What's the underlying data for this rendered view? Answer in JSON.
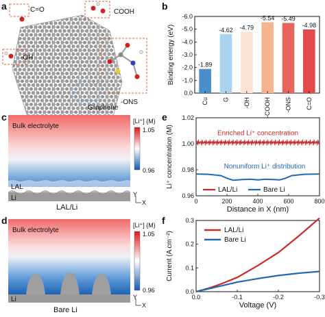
{
  "panels": {
    "a": {
      "label": "a",
      "groups": [
        "C=O",
        "COOH",
        "-OH",
        "-ONS"
      ],
      "substrate": "Graphene"
    },
    "b": {
      "label": "b"
    },
    "c": {
      "label": "c",
      "bulk": "Bulk electrolyte",
      "layer": "LAL",
      "metal": "Li",
      "caption": "LAL/Li",
      "scale_title": "[Li⁺] (M)",
      "scale_max": "1.05",
      "scale_min": "0.96",
      "axis_y": "Y",
      "axis_x": "X"
    },
    "d": {
      "label": "d",
      "bulk": "Bulk electrolyte",
      "metal": "Li",
      "caption": "Bare Li",
      "scale_title": "[Li⁺] (M)",
      "scale_max": "1.05",
      "scale_min": "0.96",
      "axis_y": "Y",
      "axis_x": "X"
    },
    "e": {
      "label": "e"
    },
    "f": {
      "label": "f"
    }
  },
  "chart_data": [
    {
      "id": "b",
      "type": "bar",
      "ylabel": "Binding energy (eV)",
      "ylim": [
        0,
        -6.0
      ],
      "yticks": [
        "0.0",
        "-1.0",
        "-2.0",
        "-3.0",
        "-4.0",
        "-5.0",
        "-6.0"
      ],
      "categories": [
        "Cu",
        "G",
        "-OH",
        "-COOH",
        "-ONS",
        "C=O"
      ],
      "values": [
        -1.89,
        -4.62,
        -4.79,
        -5.54,
        -5.49,
        -4.98
      ],
      "value_labels": [
        "-1.89",
        "-4.62",
        "-4.79",
        "-5.54",
        "-5.49",
        "-4.98"
      ],
      "colors": [
        "#4a8fc8",
        "#a9d3ef",
        "#fbe3d3",
        "#f5b38e",
        "#e8645a",
        "#e14b4b"
      ]
    },
    {
      "id": "e",
      "type": "line",
      "xlabel": "Distance in X (nm)",
      "ylabel": "Li⁺ concentration (M)",
      "xlim": [
        0,
        800
      ],
      "ylim": [
        0.96,
        1.02
      ],
      "xticks": [
        "0",
        "200",
        "400",
        "600",
        "800"
      ],
      "yticks": [
        "0.96",
        "0.98",
        "1.00",
        "1.02"
      ],
      "annotations": [
        "Enriched Li⁺ concentration",
        "Nonuniform Li⁺ distribution"
      ],
      "legend": "bottom",
      "series": [
        {
          "name": "LAL/Li",
          "color": "#cc2a2a",
          "x": [
            0,
            100,
            200,
            300,
            400,
            500,
            600,
            700,
            800
          ],
          "y": [
            1.001,
            1.001,
            1.001,
            1.001,
            1.001,
            1.001,
            1.001,
            1.001,
            1.001
          ],
          "ripple": 0.0012
        },
        {
          "name": "Bare Li",
          "color": "#1f68b3",
          "x": [
            0,
            80,
            160,
            200,
            240,
            300,
            350,
            400,
            450,
            500,
            540,
            580,
            620,
            700,
            800
          ],
          "y": [
            0.9768,
            0.9765,
            0.9755,
            0.9735,
            0.972,
            0.9725,
            0.9728,
            0.9722,
            0.9728,
            0.9725,
            0.9722,
            0.9735,
            0.9755,
            0.9765,
            0.9768
          ]
        }
      ]
    },
    {
      "id": "f",
      "type": "line",
      "xlabel": "Voltage (V)",
      "ylabel": "Current (A cm⁻²)",
      "xlim": [
        0,
        -0.3
      ],
      "ylim": [
        0,
        0.3
      ],
      "xticks": [
        "0.0",
        "-0.1",
        "-0.2",
        "-0.3"
      ],
      "yticks": [
        "0.0",
        "0.1",
        "0.2",
        "0.3"
      ],
      "legend": "top-left",
      "series": [
        {
          "name": "LAL/Li",
          "color": "#cc2a2a",
          "x": [
            0,
            -0.03,
            -0.06,
            -0.1,
            -0.15,
            -0.2,
            -0.25,
            -0.3
          ],
          "y": [
            0,
            0.014,
            0.032,
            0.06,
            0.11,
            0.165,
            0.235,
            0.31
          ]
        },
        {
          "name": "Bare Li",
          "color": "#1f68b3",
          "x": [
            0,
            -0.03,
            -0.06,
            -0.1,
            -0.15,
            -0.2,
            -0.25,
            -0.3
          ],
          "y": [
            0,
            0.012,
            0.024,
            0.04,
            0.055,
            0.068,
            0.078,
            0.085
          ]
        }
      ]
    }
  ]
}
